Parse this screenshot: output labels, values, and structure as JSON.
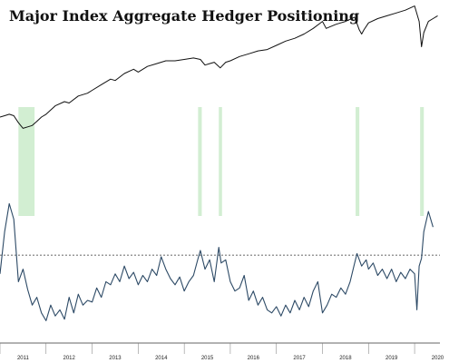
{
  "chart_data": {
    "type": "line",
    "title": "Major Index Aggregate Hedger Positioning",
    "xlabel": "",
    "ylabel": "",
    "grid": false,
    "x_tick_labels": [
      "2011",
      "2012",
      "2013",
      "2014",
      "2015",
      "2016",
      "2017",
      "2018",
      "2019",
      "2020"
    ],
    "colors": {
      "index_line": "#111111",
      "positioning_line": "#2d4a66",
      "highlight": "#cdeccd",
      "reference_line": "#333333"
    },
    "highlight_periods": [
      {
        "start": 2011.4,
        "end": 2011.75
      },
      {
        "start": 2015.3,
        "end": 2015.38
      },
      {
        "start": 2015.75,
        "end": 2015.82
      },
      {
        "start": 2018.72,
        "end": 2018.8
      },
      {
        "start": 2020.12,
        "end": 2020.2
      }
    ],
    "series": [
      {
        "role": "index",
        "ylim": [
          0,
          100
        ],
        "x": [
          2011.0,
          2011.1,
          2011.2,
          2011.3,
          2011.4,
          2011.5,
          2011.6,
          2011.7,
          2011.8,
          2011.9,
          2012.0,
          2012.2,
          2012.4,
          2012.5,
          2012.7,
          2012.9,
          2013.0,
          2013.2,
          2013.4,
          2013.5,
          2013.7,
          2013.9,
          2014.0,
          2014.2,
          2014.4,
          2014.6,
          2014.8,
          2015.0,
          2015.2,
          2015.35,
          2015.45,
          2015.55,
          2015.65,
          2015.78,
          2015.9,
          2016.0,
          2016.2,
          2016.4,
          2016.6,
          2016.8,
          2017.0,
          2017.2,
          2017.4,
          2017.6,
          2017.8,
          2018.0,
          2018.08,
          2018.15,
          2018.3,
          2018.5,
          2018.7,
          2018.8,
          2018.85,
          2018.9,
          2019.0,
          2019.2,
          2019.4,
          2019.6,
          2019.8,
          2020.0,
          2020.1,
          2020.15,
          2020.2,
          2020.3,
          2020.4,
          2020.5
        ],
        "values": [
          20,
          21,
          22,
          21,
          16,
          12,
          13,
          14,
          17,
          20,
          22,
          28,
          31,
          30,
          35,
          37,
          39,
          43,
          47,
          46,
          51,
          54,
          52,
          56,
          58,
          60,
          60,
          61,
          62,
          61,
          57,
          58,
          59,
          55,
          59,
          60,
          63,
          65,
          67,
          68,
          71,
          74,
          76,
          79,
          83,
          88,
          83,
          84,
          86,
          88,
          91,
          82,
          79,
          82,
          87,
          90,
          92,
          94,
          96,
          99,
          88,
          70,
          80,
          88,
          90,
          92
        ]
      },
      {
        "role": "positioning",
        "ylim": [
          0,
          100
        ],
        "reference_level": 47,
        "x": [
          2011.0,
          2011.1,
          2011.2,
          2011.3,
          2011.4,
          2011.5,
          2011.6,
          2011.7,
          2011.8,
          2011.9,
          2012.0,
          2012.1,
          2012.2,
          2012.3,
          2012.4,
          2012.5,
          2012.6,
          2012.7,
          2012.8,
          2012.9,
          2013.0,
          2013.1,
          2013.2,
          2013.3,
          2013.4,
          2013.5,
          2013.6,
          2013.7,
          2013.8,
          2013.9,
          2014.0,
          2014.1,
          2014.2,
          2014.3,
          2014.4,
          2014.5,
          2014.6,
          2014.7,
          2014.8,
          2014.9,
          2015.0,
          2015.1,
          2015.2,
          2015.3,
          2015.35,
          2015.45,
          2015.55,
          2015.65,
          2015.75,
          2015.8,
          2015.9,
          2016.0,
          2016.1,
          2016.2,
          2016.3,
          2016.4,
          2016.5,
          2016.6,
          2016.7,
          2016.8,
          2016.9,
          2017.0,
          2017.1,
          2017.2,
          2017.3,
          2017.4,
          2017.5,
          2017.6,
          2017.7,
          2017.8,
          2017.9,
          2018.0,
          2018.1,
          2018.2,
          2018.3,
          2018.4,
          2018.5,
          2018.6,
          2018.7,
          2018.75,
          2018.85,
          2018.95,
          2019.0,
          2019.1,
          2019.2,
          2019.3,
          2019.4,
          2019.5,
          2019.6,
          2019.7,
          2019.8,
          2019.9,
          2020.0,
          2020.05,
          2020.1,
          2020.15,
          2020.2,
          2020.3,
          2020.4
        ],
        "values": [
          35,
          62,
          80,
          70,
          30,
          38,
          25,
          15,
          20,
          10,
          5,
          15,
          8,
          12,
          6,
          20,
          10,
          22,
          15,
          18,
          17,
          26,
          20,
          30,
          28,
          35,
          30,
          40,
          32,
          36,
          28,
          34,
          30,
          38,
          34,
          46,
          38,
          32,
          28,
          33,
          24,
          30,
          34,
          45,
          50,
          38,
          44,
          30,
          52,
          42,
          44,
          30,
          24,
          26,
          34,
          18,
          24,
          15,
          20,
          12,
          10,
          14,
          8,
          15,
          10,
          18,
          12,
          20,
          14,
          24,
          30,
          10,
          15,
          22,
          20,
          26,
          22,
          30,
          42,
          48,
          40,
          44,
          38,
          42,
          34,
          38,
          32,
          38,
          30,
          36,
          32,
          38,
          35,
          12,
          40,
          45,
          62,
          75,
          65
        ]
      }
    ]
  }
}
